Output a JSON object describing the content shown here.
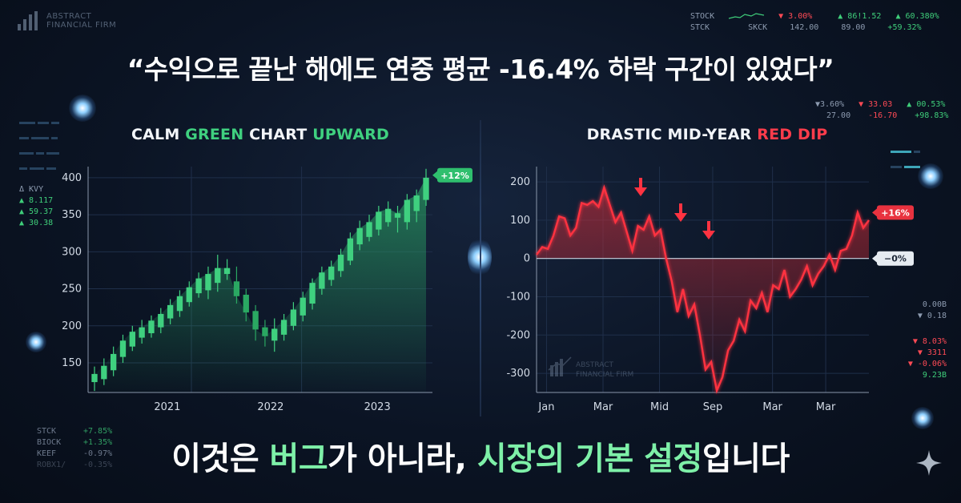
{
  "brand": {
    "name_line1": "ABSTRACT",
    "name_line2": "FINANCIAL FIRM"
  },
  "headline": "“수익으로 끝난 해에도 연중 평균 -16.4% 하락 구간이 있었다”",
  "footer": {
    "part1": "이것은 ",
    "part2": "버그",
    "part3": "가 아니라, ",
    "part4": "시장의 기본 설정",
    "part5": "입니다"
  },
  "tickers_top": {
    "row1": [
      "STOCK",
      "▼ 3.00%",
      "▲ 86!1.52",
      "▲ 60.380%"
    ],
    "row2": [
      "STCK",
      "SKCK",
      "142.00",
      "89.00",
      "+59.32%"
    ]
  },
  "tickers_right_top": {
    "row1": [
      "▼3.60%",
      "▼ 33.03",
      "▲ 00.53%"
    ],
    "row2": [
      "27.00",
      "-16.70",
      "+98.83%"
    ]
  },
  "tickers_left_mid": [
    "Δ KVY",
    "▲ 8.117",
    "▲ 59.37",
    "▲ 30.38"
  ],
  "tickers_right_mid": [
    "0.00B",
    "▼ 0.18"
  ],
  "tickers_right_low": [
    "▼ 8.03%",
    "▼ 3311",
    "▼ -0.06%",
    "9.23B"
  ],
  "tickers_bottom_left": [
    [
      "STCK",
      "+7.85%"
    ],
    [
      "BIOCK",
      "+1.35%"
    ],
    [
      "KEEF",
      "-0.97%"
    ],
    [
      "ROBX1/",
      "-0.35%"
    ]
  ],
  "colors": {
    "green": "#3fd07f",
    "red": "#ff3c4b",
    "highlight": "#7ef0a8",
    "background": "#0b1424"
  },
  "chart_data": [
    {
      "type": "candlestick",
      "title_parts": [
        "CALM ",
        "GREEN",
        " CHART ",
        "UPWARD"
      ],
      "x_ticks": [
        "2021",
        "2022",
        "2023"
      ],
      "y_ticks": [
        150,
        200,
        250,
        300,
        350,
        400
      ],
      "ylim": [
        110,
        415
      ],
      "badge": "+12%",
      "candles": [
        {
          "o": 124,
          "c": 135,
          "h": 145,
          "l": 112
        },
        {
          "o": 128,
          "c": 146,
          "h": 156,
          "l": 120
        },
        {
          "o": 140,
          "c": 162,
          "h": 172,
          "l": 132
        },
        {
          "o": 158,
          "c": 180,
          "h": 188,
          "l": 150
        },
        {
          "o": 172,
          "c": 192,
          "h": 200,
          "l": 166
        },
        {
          "o": 184,
          "c": 198,
          "h": 208,
          "l": 176
        },
        {
          "o": 190,
          "c": 207,
          "h": 214,
          "l": 184
        },
        {
          "o": 198,
          "c": 216,
          "h": 224,
          "l": 190
        },
        {
          "o": 210,
          "c": 228,
          "h": 236,
          "l": 202
        },
        {
          "o": 220,
          "c": 240,
          "h": 248,
          "l": 212
        },
        {
          "o": 232,
          "c": 252,
          "h": 260,
          "l": 226
        },
        {
          "o": 244,
          "c": 264,
          "h": 272,
          "l": 238
        },
        {
          "o": 248,
          "c": 270,
          "h": 280,
          "l": 236
        },
        {
          "o": 258,
          "c": 278,
          "h": 296,
          "l": 246
        },
        {
          "o": 270,
          "c": 278,
          "h": 290,
          "l": 262
        },
        {
          "o": 260,
          "c": 240,
          "h": 280,
          "l": 230
        },
        {
          "o": 242,
          "c": 218,
          "h": 250,
          "l": 206
        },
        {
          "o": 220,
          "c": 195,
          "h": 228,
          "l": 180
        },
        {
          "o": 198,
          "c": 186,
          "h": 208,
          "l": 172
        },
        {
          "o": 180,
          "c": 196,
          "h": 210,
          "l": 165
        },
        {
          "o": 188,
          "c": 208,
          "h": 216,
          "l": 180
        },
        {
          "o": 200,
          "c": 222,
          "h": 232,
          "l": 194
        },
        {
          "o": 214,
          "c": 238,
          "h": 246,
          "l": 206
        },
        {
          "o": 230,
          "c": 258,
          "h": 264,
          "l": 222
        },
        {
          "o": 250,
          "c": 272,
          "h": 280,
          "l": 242
        },
        {
          "o": 262,
          "c": 280,
          "h": 288,
          "l": 254
        },
        {
          "o": 274,
          "c": 296,
          "h": 304,
          "l": 266
        },
        {
          "o": 288,
          "c": 318,
          "h": 326,
          "l": 282
        },
        {
          "o": 310,
          "c": 332,
          "h": 342,
          "l": 302
        },
        {
          "o": 320,
          "c": 340,
          "h": 350,
          "l": 314
        },
        {
          "o": 330,
          "c": 354,
          "h": 362,
          "l": 322
        },
        {
          "o": 340,
          "c": 358,
          "h": 368,
          "l": 334
        },
        {
          "o": 346,
          "c": 352,
          "h": 362,
          "l": 326
        },
        {
          "o": 340,
          "c": 370,
          "h": 378,
          "l": 330
        },
        {
          "o": 355,
          "c": 376,
          "h": 384,
          "l": 340
        },
        {
          "o": 370,
          "c": 400,
          "h": 412,
          "l": 362
        }
      ]
    },
    {
      "type": "area",
      "title_parts": [
        "DRASTIC MID-YEAR ",
        "RED DIP"
      ],
      "x_ticks": [
        "Jan",
        "Mar",
        "Mid",
        "Sep",
        "Mar",
        "Mar"
      ],
      "y_ticks": [
        200,
        100,
        0,
        -100,
        -200,
        -300
      ],
      "ylim": [
        -350,
        240
      ],
      "badge_top": "+16%",
      "badge_zero": "−0%",
      "values": [
        10,
        30,
        25,
        60,
        110,
        105,
        60,
        80,
        145,
        140,
        150,
        135,
        185,
        140,
        95,
        120,
        70,
        20,
        85,
        75,
        110,
        60,
        75,
        0,
        -60,
        -140,
        -80,
        -150,
        -120,
        -200,
        -290,
        -270,
        -345,
        -310,
        -240,
        -215,
        -160,
        -190,
        -110,
        -130,
        -90,
        -140,
        -70,
        -80,
        -30,
        -100,
        -80,
        -55,
        -20,
        -70,
        -40,
        -20,
        10,
        -30,
        20,
        25,
        60,
        120,
        80,
        100
      ]
    }
  ]
}
